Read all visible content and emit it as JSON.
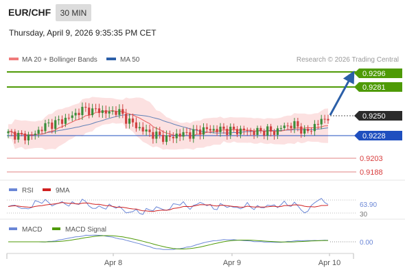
{
  "header": {
    "symbol": "EUR/CHF",
    "timeframe": "30 MIN",
    "datetime": "Thursday, April 9, 2026 9:35:35 PM CET"
  },
  "legend": {
    "ma20": "MA 20 + Bollinger Bands",
    "ma50": "MA 50",
    "copyright": "Research © 2026 Trading Central"
  },
  "colors": {
    "ma20": "#e85b5b",
    "ma50": "#2b5fa8",
    "band_fill": "#fcdcdc",
    "up_candle": "#3a8d3a",
    "down_candle": "#d04040",
    "target": "#4e9a06",
    "pivot": "#1f4fbf",
    "support": "#d83c3c",
    "arrow": "#2b5fa8",
    "rsi": "#6a86d6",
    "rsi_ma": "#d02020",
    "macd": "#6a86d6",
    "macd_signal": "#4e9a06"
  },
  "levels": [
    {
      "value": "0.9296",
      "kind": "target"
    },
    {
      "value": "0.9281",
      "kind": "target"
    },
    {
      "value": "0.9250",
      "kind": "current"
    },
    {
      "value": "0.9228",
      "kind": "pivot"
    },
    {
      "value": "0.9203",
      "kind": "support"
    },
    {
      "value": "0.9188",
      "kind": "support"
    }
  ],
  "rsi": {
    "label": "RSI",
    "ma_label": "9MA",
    "value": "63.90",
    "lower_tick": "30"
  },
  "macd": {
    "label": "MACD",
    "signal_label": "MACD Signal",
    "value": "0.00"
  },
  "x_axis": [
    "Apr 8",
    "Apr 9",
    "Apr 10"
  ],
  "chart_data": {
    "type": "candlestick",
    "ylim": [
      0.9183,
      0.9302
    ],
    "price_path": [
      [
        0,
        0.9229
      ],
      [
        1,
        0.9229
      ],
      [
        2,
        0.9227
      ],
      [
        3,
        0.9226
      ],
      [
        4,
        0.9226
      ],
      [
        5,
        0.9227
      ],
      [
        6,
        0.923
      ],
      [
        7,
        0.9235
      ],
      [
        8,
        0.9238
      ],
      [
        9,
        0.924
      ],
      [
        10,
        0.9241
      ],
      [
        11,
        0.9243
      ],
      [
        12,
        0.9245
      ],
      [
        13,
        0.9247
      ],
      [
        14,
        0.925
      ],
      [
        15,
        0.9254
      ],
      [
        16,
        0.9256
      ],
      [
        17,
        0.9256
      ],
      [
        18,
        0.9254
      ],
      [
        19,
        0.9256
      ],
      [
        20,
        0.9254
      ],
      [
        21,
        0.9252
      ],
      [
        22,
        0.9253
      ],
      [
        23,
        0.9255
      ],
      [
        24,
        0.9251
      ],
      [
        25,
        0.9246
      ],
      [
        26,
        0.9242
      ],
      [
        27,
        0.9238
      ],
      [
        28,
        0.9235
      ],
      [
        29,
        0.9232
      ],
      [
        30,
        0.923
      ],
      [
        31,
        0.9228
      ],
      [
        32,
        0.9226
      ],
      [
        33,
        0.9225
      ],
      [
        34,
        0.9224
      ],
      [
        35,
        0.9225
      ],
      [
        36,
        0.9229
      ],
      [
        37,
        0.9227
      ],
      [
        38,
        0.923
      ],
      [
        39,
        0.9228
      ],
      [
        40,
        0.9232
      ],
      [
        41,
        0.9233
      ],
      [
        42,
        0.9234
      ],
      [
        43,
        0.9233
      ],
      [
        44,
        0.9234
      ],
      [
        45,
        0.9233
      ],
      [
        46,
        0.9234
      ],
      [
        47,
        0.9232
      ],
      [
        48,
        0.9233
      ],
      [
        49,
        0.9232
      ],
      [
        50,
        0.9233
      ],
      [
        51,
        0.9232
      ],
      [
        52,
        0.9231
      ],
      [
        53,
        0.9231
      ],
      [
        54,
        0.9232
      ],
      [
        55,
        0.9233
      ],
      [
        56,
        0.923
      ],
      [
        57,
        0.9232
      ],
      [
        58,
        0.9236
      ],
      [
        59,
        0.9237
      ],
      [
        60,
        0.9239
      ],
      [
        61,
        0.9238
      ],
      [
        62,
        0.9236
      ],
      [
        63,
        0.923
      ],
      [
        64,
        0.9232
      ],
      [
        65,
        0.9238
      ],
      [
        66,
        0.9241
      ],
      [
        67,
        0.9245
      ],
      [
        68,
        0.9248
      ]
    ]
  }
}
